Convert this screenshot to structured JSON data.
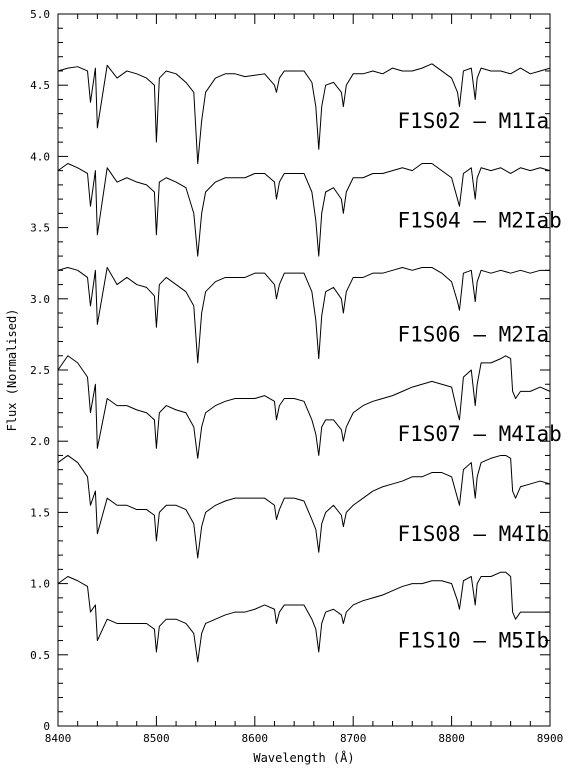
{
  "chart_data": {
    "type": "line",
    "title": "",
    "xlabel": "Wavelength (Å)",
    "ylabel": "Flux (Normalised)",
    "xlim": [
      8400,
      8900
    ],
    "ylim": [
      0,
      5.0
    ],
    "x_ticks": [
      "8400",
      "8500",
      "8600",
      "8700",
      "8800",
      "8900"
    ],
    "y_ticks": [
      "0",
      "0.5",
      "1.0",
      "1.5",
      "2.0",
      "2.5",
      "3.0",
      "3.5",
      "4.0",
      "4.5",
      "5.0"
    ],
    "grid": false,
    "series": [
      {
        "name": "F1S02 – M1Ia",
        "x": [
          8400,
          8410,
          8420,
          8430,
          8433,
          8438,
          8440,
          8450,
          8460,
          8470,
          8480,
          8490,
          8498,
          8500,
          8503,
          8510,
          8520,
          8530,
          8538,
          8542,
          8546,
          8550,
          8560,
          8570,
          8580,
          8590,
          8600,
          8610,
          8620,
          8622,
          8625,
          8630,
          8640,
          8650,
          8658,
          8662,
          8665,
          8668,
          8672,
          8680,
          8688,
          8690,
          8693,
          8700,
          8710,
          8720,
          8730,
          8740,
          8750,
          8760,
          8770,
          8780,
          8790,
          8800,
          8806,
          8808,
          8812,
          8820,
          8824,
          8826,
          8830,
          8840,
          8850,
          8860,
          8870,
          8880,
          8890,
          8900
        ],
        "y": [
          4.6,
          4.62,
          4.63,
          4.6,
          4.38,
          4.62,
          4.2,
          4.64,
          4.55,
          4.6,
          4.58,
          4.55,
          4.5,
          4.1,
          4.55,
          4.6,
          4.58,
          4.52,
          4.45,
          3.95,
          4.25,
          4.45,
          4.55,
          4.58,
          4.58,
          4.56,
          4.57,
          4.58,
          4.5,
          4.45,
          4.55,
          4.6,
          4.6,
          4.6,
          4.52,
          4.35,
          4.05,
          4.35,
          4.5,
          4.52,
          4.45,
          4.35,
          4.5,
          4.58,
          4.58,
          4.6,
          4.58,
          4.62,
          4.6,
          4.6,
          4.62,
          4.65,
          4.6,
          4.55,
          4.45,
          4.35,
          4.6,
          4.62,
          4.4,
          4.55,
          4.62,
          4.6,
          4.6,
          4.58,
          4.62,
          4.58,
          4.6,
          4.62
        ]
      },
      {
        "name": "F1S04 – M2Iab",
        "x": [
          8400,
          8410,
          8420,
          8430,
          8433,
          8438,
          8440,
          8450,
          8460,
          8470,
          8480,
          8490,
          8498,
          8500,
          8503,
          8510,
          8520,
          8530,
          8538,
          8542,
          8546,
          8550,
          8560,
          8570,
          8580,
          8590,
          8600,
          8610,
          8620,
          8622,
          8625,
          8630,
          8640,
          8650,
          8658,
          8662,
          8665,
          8668,
          8672,
          8680,
          8688,
          8690,
          8693,
          8700,
          8710,
          8720,
          8730,
          8740,
          8750,
          8760,
          8770,
          8780,
          8790,
          8800,
          8806,
          8808,
          8812,
          8820,
          8824,
          8826,
          8830,
          8840,
          8850,
          8860,
          8870,
          8880,
          8890,
          8900
        ],
        "y": [
          3.9,
          3.95,
          3.92,
          3.88,
          3.65,
          3.9,
          3.45,
          3.92,
          3.82,
          3.85,
          3.82,
          3.8,
          3.75,
          3.45,
          3.82,
          3.85,
          3.82,
          3.78,
          3.6,
          3.3,
          3.6,
          3.75,
          3.82,
          3.85,
          3.85,
          3.85,
          3.88,
          3.88,
          3.82,
          3.7,
          3.82,
          3.88,
          3.88,
          3.88,
          3.75,
          3.55,
          3.3,
          3.6,
          3.75,
          3.78,
          3.7,
          3.6,
          3.75,
          3.85,
          3.85,
          3.88,
          3.88,
          3.9,
          3.92,
          3.9,
          3.95,
          3.95,
          3.9,
          3.85,
          3.7,
          3.65,
          3.88,
          3.92,
          3.7,
          3.85,
          3.92,
          3.9,
          3.92,
          3.88,
          3.92,
          3.9,
          3.92,
          3.9
        ]
      },
      {
        "name": "F1S06 – M2Ia",
        "x": [
          8400,
          8410,
          8420,
          8430,
          8433,
          8438,
          8440,
          8450,
          8460,
          8470,
          8480,
          8490,
          8498,
          8500,
          8503,
          8510,
          8520,
          8530,
          8538,
          8542,
          8546,
          8550,
          8560,
          8570,
          8580,
          8590,
          8600,
          8610,
          8620,
          8622,
          8625,
          8630,
          8640,
          8650,
          8658,
          8662,
          8665,
          8668,
          8672,
          8680,
          8688,
          8690,
          8693,
          8700,
          8710,
          8720,
          8730,
          8740,
          8750,
          8760,
          8770,
          8780,
          8790,
          8800,
          8806,
          8808,
          8812,
          8820,
          8824,
          8826,
          8830,
          8840,
          8850,
          8860,
          8870,
          8880,
          8890,
          8900
        ],
        "y": [
          3.2,
          3.22,
          3.2,
          3.15,
          2.95,
          3.2,
          2.82,
          3.22,
          3.1,
          3.15,
          3.1,
          3.08,
          3.02,
          2.8,
          3.1,
          3.15,
          3.1,
          3.05,
          2.95,
          2.55,
          2.9,
          3.05,
          3.12,
          3.15,
          3.15,
          3.15,
          3.18,
          3.18,
          3.1,
          3.0,
          3.1,
          3.18,
          3.18,
          3.18,
          3.05,
          2.85,
          2.58,
          2.88,
          3.05,
          3.08,
          3.0,
          2.9,
          3.05,
          3.15,
          3.15,
          3.18,
          3.18,
          3.2,
          3.22,
          3.2,
          3.22,
          3.22,
          3.18,
          3.12,
          2.98,
          2.92,
          3.18,
          3.2,
          2.98,
          3.12,
          3.2,
          3.18,
          3.2,
          3.18,
          3.2,
          3.18,
          3.2,
          3.2
        ]
      },
      {
        "name": "F1S07 – M4Iab",
        "x": [
          8400,
          8410,
          8420,
          8430,
          8433,
          8438,
          8440,
          8450,
          8460,
          8470,
          8480,
          8490,
          8498,
          8500,
          8503,
          8510,
          8520,
          8530,
          8538,
          8542,
          8546,
          8550,
          8560,
          8570,
          8580,
          8590,
          8600,
          8610,
          8620,
          8622,
          8625,
          8630,
          8640,
          8650,
          8658,
          8662,
          8665,
          8668,
          8672,
          8680,
          8688,
          8690,
          8693,
          8700,
          8710,
          8720,
          8730,
          8740,
          8750,
          8760,
          8770,
          8780,
          8790,
          8800,
          8806,
          8808,
          8812,
          8820,
          8824,
          8826,
          8830,
          8840,
          8850,
          8855,
          8860,
          8862,
          8865,
          8870,
          8880,
          8890,
          8900
        ],
        "y": [
          2.5,
          2.6,
          2.55,
          2.45,
          2.2,
          2.4,
          1.95,
          2.3,
          2.25,
          2.25,
          2.22,
          2.2,
          2.15,
          1.95,
          2.2,
          2.25,
          2.22,
          2.2,
          2.1,
          1.88,
          2.1,
          2.2,
          2.25,
          2.28,
          2.3,
          2.3,
          2.3,
          2.32,
          2.28,
          2.15,
          2.25,
          2.3,
          2.3,
          2.28,
          2.15,
          2.05,
          1.9,
          2.1,
          2.15,
          2.15,
          2.08,
          2.0,
          2.1,
          2.2,
          2.25,
          2.28,
          2.3,
          2.32,
          2.35,
          2.38,
          2.4,
          2.42,
          2.4,
          2.38,
          2.2,
          2.15,
          2.45,
          2.5,
          2.25,
          2.4,
          2.55,
          2.55,
          2.58,
          2.6,
          2.58,
          2.35,
          2.3,
          2.35,
          2.35,
          2.38,
          2.35
        ]
      },
      {
        "name": "F1S08 – M4Ib",
        "x": [
          8400,
          8410,
          8420,
          8430,
          8433,
          8438,
          8440,
          8450,
          8460,
          8470,
          8480,
          8490,
          8498,
          8500,
          8503,
          8510,
          8520,
          8530,
          8538,
          8542,
          8546,
          8550,
          8560,
          8570,
          8580,
          8590,
          8600,
          8610,
          8620,
          8622,
          8625,
          8630,
          8640,
          8650,
          8658,
          8662,
          8665,
          8668,
          8672,
          8680,
          8688,
          8690,
          8693,
          8700,
          8710,
          8720,
          8730,
          8740,
          8750,
          8760,
          8770,
          8780,
          8790,
          8800,
          8806,
          8808,
          8812,
          8820,
          8824,
          8826,
          8830,
          8840,
          8850,
          8855,
          8860,
          8862,
          8865,
          8870,
          8880,
          8890,
          8900
        ],
        "y": [
          1.85,
          1.9,
          1.85,
          1.75,
          1.55,
          1.65,
          1.35,
          1.6,
          1.55,
          1.55,
          1.52,
          1.52,
          1.48,
          1.3,
          1.5,
          1.55,
          1.55,
          1.52,
          1.42,
          1.18,
          1.4,
          1.5,
          1.55,
          1.58,
          1.6,
          1.6,
          1.6,
          1.6,
          1.55,
          1.45,
          1.52,
          1.6,
          1.6,
          1.58,
          1.45,
          1.38,
          1.22,
          1.42,
          1.5,
          1.55,
          1.48,
          1.4,
          1.5,
          1.55,
          1.6,
          1.65,
          1.68,
          1.7,
          1.72,
          1.75,
          1.75,
          1.78,
          1.78,
          1.75,
          1.6,
          1.55,
          1.8,
          1.85,
          1.6,
          1.75,
          1.85,
          1.88,
          1.9,
          1.9,
          1.88,
          1.65,
          1.6,
          1.68,
          1.7,
          1.72,
          1.7
        ]
      },
      {
        "name": "F1S10 – M5Ib",
        "x": [
          8400,
          8410,
          8420,
          8430,
          8433,
          8438,
          8440,
          8450,
          8460,
          8470,
          8480,
          8490,
          8498,
          8500,
          8503,
          8510,
          8520,
          8530,
          8538,
          8542,
          8546,
          8550,
          8560,
          8570,
          8580,
          8590,
          8600,
          8610,
          8620,
          8622,
          8625,
          8630,
          8640,
          8650,
          8658,
          8662,
          8665,
          8668,
          8672,
          8680,
          8688,
          8690,
          8693,
          8700,
          8710,
          8720,
          8730,
          8740,
          8750,
          8760,
          8770,
          8780,
          8790,
          8800,
          8806,
          8808,
          8812,
          8820,
          8824,
          8826,
          8830,
          8840,
          8850,
          8855,
          8860,
          8862,
          8865,
          8870,
          8880,
          8890,
          8900
        ],
        "y": [
          1.0,
          1.05,
          1.02,
          0.98,
          0.8,
          0.85,
          0.6,
          0.75,
          0.72,
          0.72,
          0.72,
          0.72,
          0.68,
          0.52,
          0.7,
          0.75,
          0.75,
          0.72,
          0.65,
          0.45,
          0.65,
          0.72,
          0.75,
          0.78,
          0.8,
          0.8,
          0.82,
          0.85,
          0.82,
          0.72,
          0.8,
          0.85,
          0.85,
          0.85,
          0.75,
          0.68,
          0.52,
          0.72,
          0.8,
          0.82,
          0.78,
          0.72,
          0.8,
          0.85,
          0.88,
          0.9,
          0.92,
          0.95,
          0.98,
          1.0,
          1.0,
          1.02,
          1.02,
          1.0,
          0.88,
          0.82,
          1.02,
          1.05,
          0.85,
          1.0,
          1.05,
          1.05,
          1.08,
          1.08,
          1.05,
          0.8,
          0.75,
          0.8,
          0.8,
          0.8,
          0.8
        ]
      }
    ],
    "annotations": [
      {
        "text": "F1S02 – M1Ia",
        "x": 8745,
        "y": 4.2
      },
      {
        "text": "F1S04 – M2Iab",
        "x": 8745,
        "y": 3.5
      },
      {
        "text": "F1S06 – M2Ia",
        "x": 8745,
        "y": 2.7
      },
      {
        "text": "F1S07 – M4Iab",
        "x": 8745,
        "y": 2.0
      },
      {
        "text": "F1S08 – M4Ib",
        "x": 8745,
        "y": 1.3
      },
      {
        "text": "F1S10 – M5Ib",
        "x": 8745,
        "y": 0.55
      }
    ]
  }
}
